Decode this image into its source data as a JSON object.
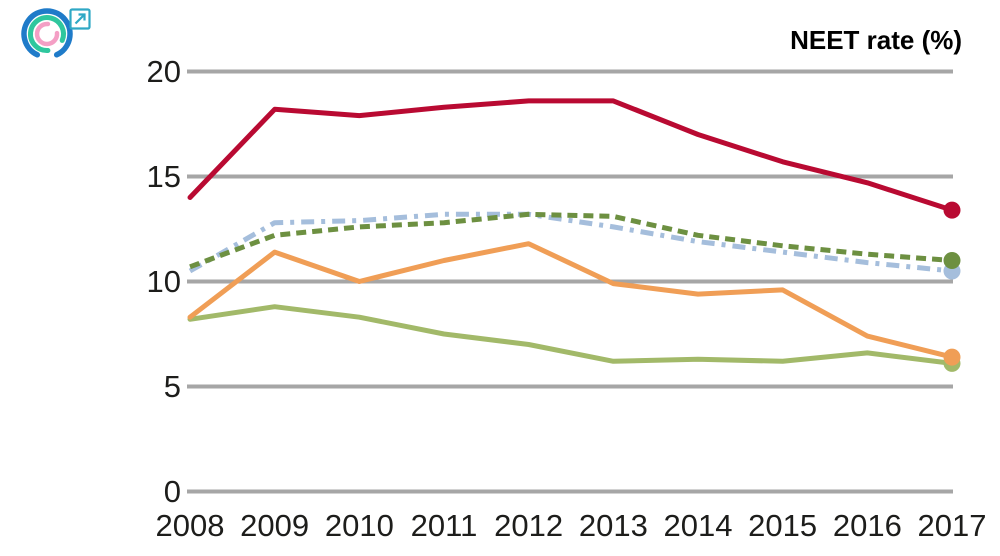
{
  "header": {
    "title": "NEET rate (%)",
    "logo_name": "oecd-data-logo",
    "logo_colors": {
      "outer": "#1f7bc9",
      "middle": "#2fc79e",
      "inner": "#f49fc5"
    },
    "external_link_icon_color": "#2fa8c5"
  },
  "chart_data": {
    "type": "line",
    "title": "NEET rate (%)",
    "xlabel": "",
    "ylabel": "",
    "x": [
      "2008",
      "2009",
      "2010",
      "2011",
      "2012",
      "2013",
      "2014",
      "2015",
      "2016",
      "2017"
    ],
    "ylim": [
      0,
      20
    ],
    "yticks": [
      0,
      5,
      10,
      15,
      20
    ],
    "grid": "horizontal",
    "gridline_color": "#a6a6a6",
    "text_color": "#1d1d1b",
    "legend": "none",
    "end_markers": true,
    "series": [
      {
        "name": "light-blue-dash-dot",
        "color": "#a5bedc",
        "dash": "dash-dot",
        "values": [
          10.5,
          12.8,
          12.9,
          13.2,
          13.2,
          12.6,
          11.9,
          11.4,
          10.9,
          10.5
        ]
      },
      {
        "name": "dark-green-dashed",
        "color": "#6d9041",
        "dash": "dashed",
        "values": [
          10.7,
          12.2,
          12.6,
          12.8,
          13.2,
          13.1,
          12.2,
          11.7,
          11.3,
          11.0
        ]
      },
      {
        "name": "light-green-solid",
        "color": "#a2b969",
        "dash": "solid",
        "values": [
          8.2,
          8.8,
          8.3,
          7.5,
          7.0,
          6.2,
          6.3,
          6.2,
          6.6,
          6.1
        ]
      },
      {
        "name": "orange-solid",
        "color": "#f09e56",
        "dash": "solid",
        "values": [
          8.3,
          11.4,
          10.0,
          11.0,
          11.8,
          9.9,
          9.4,
          9.6,
          7.4,
          6.4
        ]
      },
      {
        "name": "dark-red-solid",
        "color": "#b90a32",
        "dash": "solid",
        "values": [
          14.0,
          18.2,
          17.9,
          18.3,
          18.6,
          18.6,
          17.0,
          15.7,
          14.7,
          13.4
        ]
      }
    ]
  }
}
